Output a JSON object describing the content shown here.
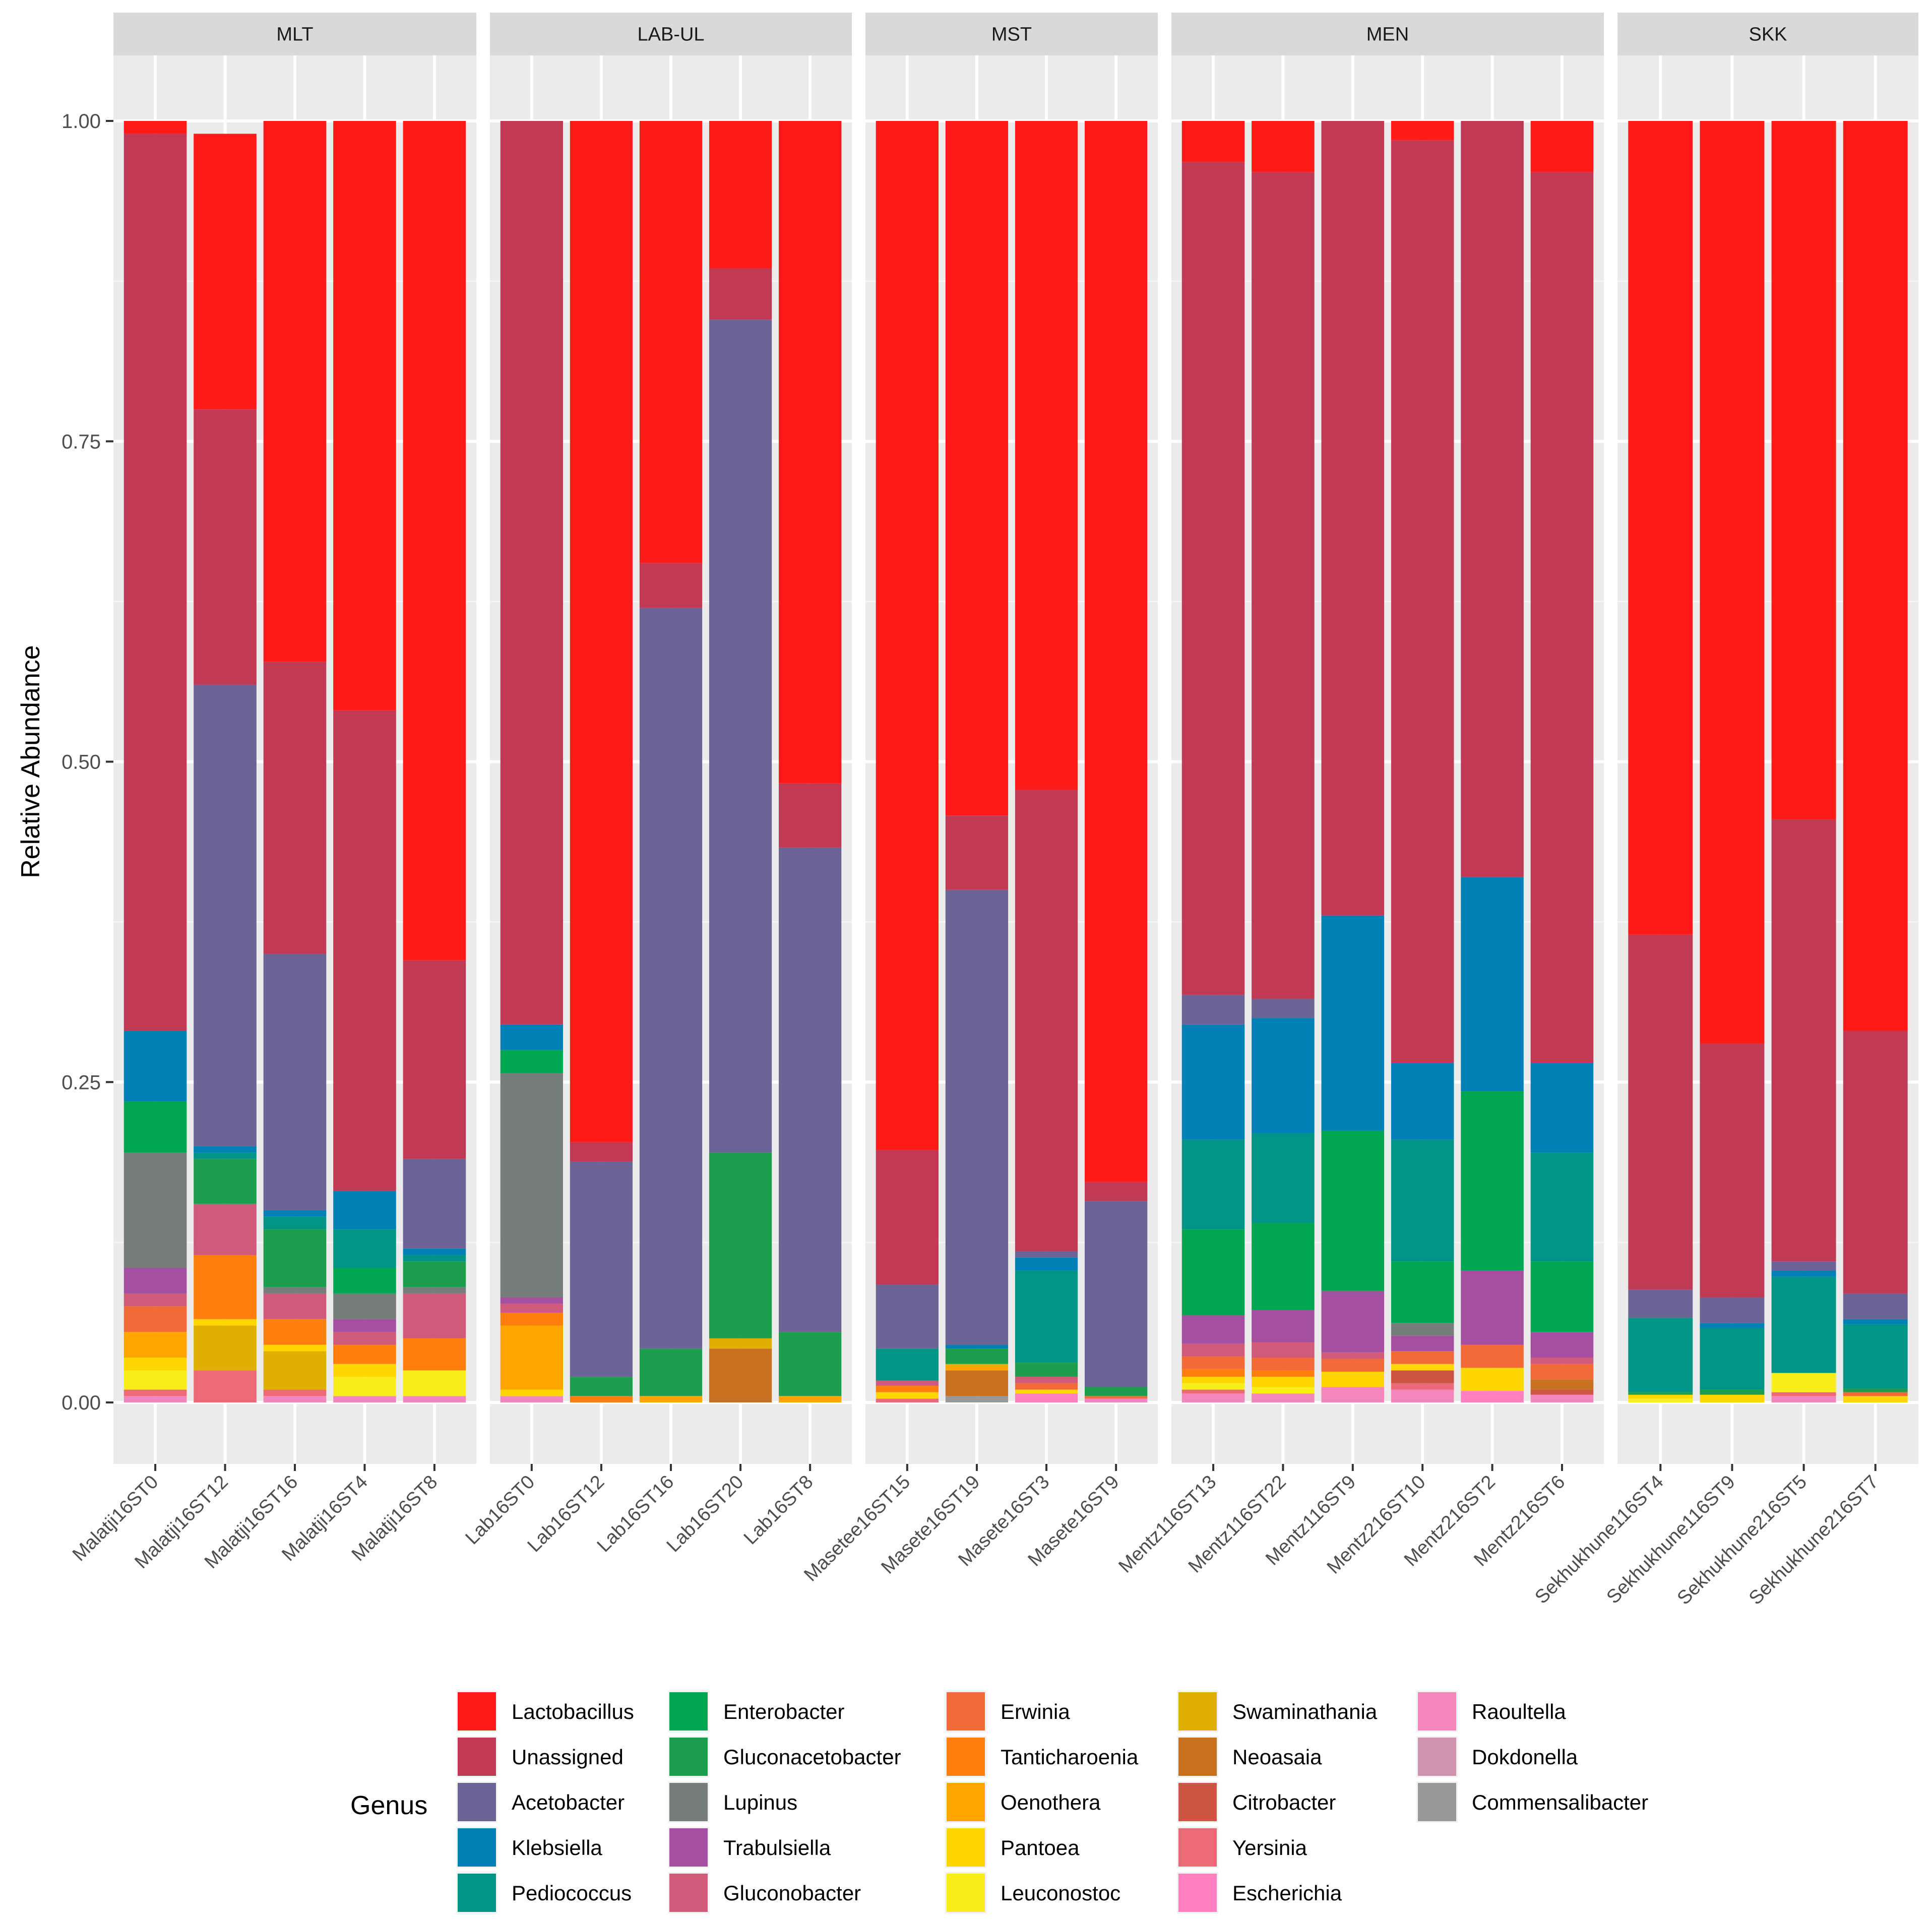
{
  "chart_data": {
    "type": "bar",
    "stacked": true,
    "ylabel": "Relative Abundance",
    "xlabel": "",
    "ylim": [
      0,
      1.05
    ],
    "yticks": [
      0.0,
      0.25,
      0.5,
      0.75,
      1.0
    ],
    "ytick_labels": [
      "0.00",
      "0.25",
      "0.50",
      "0.75",
      "1.00"
    ],
    "legend": {
      "title": "Genus",
      "position": "bottom"
    },
    "genera": [
      {
        "name": "Lactobacillus",
        "color": "#FF1A1A"
      },
      {
        "name": "Unassigned",
        "color": "#C03A55"
      },
      {
        "name": "Acetobacter",
        "color": "#6B6494"
      },
      {
        "name": "Klebsiella",
        "color": "#0080B5"
      },
      {
        "name": "Pediococcus",
        "color": "#009486"
      },
      {
        "name": "Enterobacter",
        "color": "#00A651"
      },
      {
        "name": "Gluconacetobacter",
        "color": "#1C9E4E"
      },
      {
        "name": "Lupinus",
        "color": "#767D7A"
      },
      {
        "name": "Trabulsiella",
        "color": "#A54FA0"
      },
      {
        "name": "Gluconobacter",
        "color": "#CF5A79"
      },
      {
        "name": "Erwinia",
        "color": "#F26A38"
      },
      {
        "name": "Tanticharoenia",
        "color": "#FF7F0E"
      },
      {
        "name": "Oenothera",
        "color": "#FFA500"
      },
      {
        "name": "Pantoea",
        "color": "#FFD700"
      },
      {
        "name": "Leuconostoc",
        "color": "#F7EF1C"
      },
      {
        "name": "Swaminathania",
        "color": "#E0B000"
      },
      {
        "name": "Neoasaia",
        "color": "#C87120"
      },
      {
        "name": "Citrobacter",
        "color": "#CC5543"
      },
      {
        "name": "Yersinia",
        "color": "#EC6A78"
      },
      {
        "name": "Escherichia",
        "color": "#FF7FBF"
      },
      {
        "name": "Raoultella",
        "color": "#F386BB"
      },
      {
        "name": "Dokdonella",
        "color": "#D095AE"
      },
      {
        "name": "Commensalibacter",
        "color": "#999999"
      }
    ],
    "facets": [
      {
        "name": "MLT",
        "samples": [
          {
            "name": "Malatji16ST0",
            "values": {
              "Lactobacillus": 0.01,
              "Unassigned": 0.7,
              "Klebsiella": 0.055,
              "Enterobacter": 0.04,
              "Lupinus": 0.09,
              "Trabulsiella": 0.02,
              "Gluconobacter": 0.01,
              "Erwinia": 0.02,
              "Oenothera": 0.02,
              "Pantoea": 0.01,
              "Leuconostoc": 0.015,
              "Yersinia": 0.005,
              "Raoultella": 0.005
            }
          },
          {
            "name": "Malatji16ST12",
            "values": {
              "Lactobacillus": 0.215,
              "Unassigned": 0.215,
              "Acetobacter": 0.36,
              "Klebsiella": 0.005,
              "Pediococcus": 0.005,
              "Gluconacetobacter": 0.035,
              "Gluconobacter": 0.04,
              "Yersinia": 0.025,
              "Tanticharoenia": 0.05,
              "Pantoea": 0.005,
              "Swaminathania": 0.035
            }
          },
          {
            "name": "Malatji16ST16",
            "values": {
              "Lactobacillus": 0.422,
              "Unassigned": 0.228,
              "Acetobacter": 0.2,
              "Klebsiella": 0.005,
              "Pediococcus": 0.01,
              "Gluconacetobacter": 0.045,
              "Lupinus": 0.005,
              "Gluconobacter": 0.02,
              "Yersinia": 0.005,
              "Tanticharoenia": 0.02,
              "Pantoea": 0.005,
              "Swaminathania": 0.03,
              "Raoultella": 0.005
            }
          },
          {
            "name": "Malatji16ST4",
            "values": {
              "Lactobacillus": 0.46,
              "Unassigned": 0.375,
              "Klebsiella": 0.03,
              "Pediococcus": 0.03,
              "Enterobacter": 0.02,
              "Lupinus": 0.02,
              "Trabulsiella": 0.01,
              "Gluconobacter": 0.01,
              "Tanticharoenia": 0.015,
              "Pantoea": 0.01,
              "Leuconostoc": 0.015,
              "Raoultella": 0.005
            }
          },
          {
            "name": "Malatji16ST8",
            "values": {
              "Lactobacillus": 0.655,
              "Unassigned": 0.155,
              "Acetobacter": 0.07,
              "Klebsiella": 0.005,
              "Pediococcus": 0.005,
              "Gluconacetobacter": 0.02,
              "Lupinus": 0.005,
              "Gluconobacter": 0.035,
              "Tanticharoenia": 0.025,
              "Leuconostoc": 0.02,
              "Raoultella": 0.005
            }
          }
        ]
      },
      {
        "name": "LAB-UL",
        "samples": [
          {
            "name": "Lab16ST0",
            "values": {
              "Unassigned": 0.705,
              "Klebsiella": 0.02,
              "Enterobacter": 0.018,
              "Lupinus": 0.175,
              "Trabulsiella": 0.005,
              "Gluconobacter": 0.007,
              "Tanticharoenia": 0.01,
              "Oenothera": 0.05,
              "Pantoea": 0.005,
              "Raoultella": 0.005
            }
          },
          {
            "name": "Lab16ST12",
            "values": {
              "Lactobacillus": 0.797,
              "Unassigned": 0.015,
              "Acetobacter": 0.168,
              "Gluconacetobacter": 0.015,
              "Tanticharoenia": 0.005
            }
          },
          {
            "name": "Lab16ST16",
            "values": {
              "Lactobacillus": 0.345,
              "Unassigned": 0.035,
              "Acetobacter": 0.578,
              "Gluconacetobacter": 0.037,
              "Oenothera": 0.005
            }
          },
          {
            "name": "Lab16ST20",
            "values": {
              "Lactobacillus": 0.115,
              "Unassigned": 0.04,
              "Acetobacter": 0.65,
              "Gluconacetobacter": 0.145,
              "Swaminathania": 0.008,
              "Neoasaia": 0.042
            }
          },
          {
            "name": "Lab16ST8",
            "values": {
              "Lactobacillus": 0.517,
              "Unassigned": 0.05,
              "Acetobacter": 0.378,
              "Gluconacetobacter": 0.05,
              "Oenothera": 0.005
            }
          }
        ]
      },
      {
        "name": "MST",
        "samples": [
          {
            "name": "Masetee16ST15",
            "values": {
              "Lactobacillus": 0.803,
              "Unassigned": 0.105,
              "Acetobacter": 0.05,
              "Pediococcus": 0.025,
              "Gluconobacter": 0.004,
              "Yersinia": 0.003,
              "Tanticharoenia": 0.005,
              "Pantoea": 0.005
            }
          },
          {
            "name": "Masete16ST19",
            "values": {
              "Lactobacillus": 0.542,
              "Unassigned": 0.058,
              "Acetobacter": 0.355,
              "Klebsiella": 0.003,
              "Gluconacetobacter": 0.012,
              "Oenothera": 0.005,
              "Neoasaia": 0.02,
              "Commensalibacter": 0.005
            }
          },
          {
            "name": "Masete16ST3",
            "values": {
              "Lactobacillus": 0.522,
              "Unassigned": 0.36,
              "Acetobacter": 0.005,
              "Klebsiella": 0.01,
              "Pediococcus": 0.072,
              "Gluconacetobacter": 0.011,
              "Gluconobacter": 0.005,
              "Erwinia": 0.005,
              "Pantoea": 0.003,
              "Escherichia": 0.007
            }
          },
          {
            "name": "Masete16ST9",
            "values": {
              "Lactobacillus": 0.828,
              "Unassigned": 0.015,
              "Acetobacter": 0.145,
              "Gluconacetobacter": 0.007,
              "Erwinia": 0.002,
              "Raoultella": 0.003
            }
          }
        ]
      },
      {
        "name": "MEN",
        "samples": [
          {
            "name": "Mentz116ST13",
            "values": {
              "Lactobacillus": 0.032,
              "Unassigned": 0.65,
              "Acetobacter": 0.023,
              "Klebsiella": 0.09,
              "Pediococcus": 0.07,
              "Enterobacter": 0.067,
              "Trabulsiella": 0.022,
              "Gluconobacter": 0.01,
              "Erwinia": 0.01,
              "Tanticharoenia": 0.006,
              "Pantoea": 0.005,
              "Leuconostoc": 0.005,
              "Yersinia": 0.003,
              "Raoultella": 0.007
            }
          },
          {
            "name": "Mentz116ST22",
            "values": {
              "Lactobacillus": 0.04,
              "Unassigned": 0.645,
              "Acetobacter": 0.015,
              "Klebsiella": 0.09,
              "Pediococcus": 0.07,
              "Enterobacter": 0.068,
              "Trabulsiella": 0.025,
              "Gluconobacter": 0.012,
              "Erwinia": 0.01,
              "Tanticharoenia": 0.005,
              "Pantoea": 0.008,
              "Leuconostoc": 0.005,
              "Raoultella": 0.007
            }
          },
          {
            "name": "Mentz116ST9",
            "values": {
              "Unassigned": 0.62,
              "Klebsiella": 0.168,
              "Enterobacter": 0.125,
              "Trabulsiella": 0.048,
              "Gluconobacter": 0.005,
              "Erwinia": 0.01,
              "Pantoea": 0.012,
              "Raoultella": 0.012
            }
          },
          {
            "name": "Mentz216ST10",
            "values": {
              "Lactobacillus": 0.015,
              "Unassigned": 0.72,
              "Klebsiella": 0.06,
              "Pediococcus": 0.095,
              "Enterobacter": 0.048,
              "Lupinus": 0.01,
              "Trabulsiella": 0.012,
              "Erwinia": 0.01,
              "Pantoea": 0.005,
              "Citrobacter": 0.01,
              "Yersinia": 0.005,
              "Raoultella": 0.01
            }
          },
          {
            "name": "Mentz216ST2",
            "values": {
              "Unassigned": 0.59,
              "Klebsiella": 0.167,
              "Enterobacter": 0.14,
              "Trabulsiella": 0.058,
              "Erwinia": 0.018,
              "Pantoea": 0.018,
              "Escherichia": 0.009
            }
          },
          {
            "name": "Mentz216ST6",
            "values": {
              "Lactobacillus": 0.04,
              "Unassigned": 0.695,
              "Klebsiella": 0.07,
              "Pediococcus": 0.085,
              "Enterobacter": 0.055,
              "Trabulsiella": 0.02,
              "Gluconobacter": 0.005,
              "Erwinia": 0.012,
              "Neoasaia": 0.008,
              "Citrobacter": 0.004,
              "Raoultella": 0.006
            }
          }
        ]
      },
      {
        "name": "SKK",
        "samples": [
          {
            "name": "Sekhukhune116ST4",
            "values": {
              "Lactobacillus": 0.635,
              "Unassigned": 0.277,
              "Acetobacter": 0.022,
              "Pediococcus": 0.058,
              "Gluconacetobacter": 0.002,
              "Pantoea": 0.003,
              "Leuconostoc": 0.003
            }
          },
          {
            "name": "Sekhukhune116ST9",
            "values": {
              "Lactobacillus": 0.72,
              "Unassigned": 0.198,
              "Acetobacter": 0.02,
              "Klebsiella": 0.004,
              "Pediococcus": 0.048,
              "Gluconacetobacter": 0.004,
              "Pantoea": 0.006
            }
          },
          {
            "name": "Sekhukhune216ST5",
            "values": {
              "Lactobacillus": 0.545,
              "Unassigned": 0.345,
              "Acetobacter": 0.007,
              "Klebsiella": 0.005,
              "Pediococcus": 0.075,
              "Yersinia": 0.003,
              "Leuconostoc": 0.015,
              "Raoultella": 0.005
            }
          },
          {
            "name": "Sekhukhune216ST7",
            "values": {
              "Lactobacillus": 0.71,
              "Unassigned": 0.205,
              "Acetobacter": 0.02,
              "Klebsiella": 0.004,
              "Pediococcus": 0.05,
              "Gluconacetobacter": 0.003,
              "Erwinia": 0.003,
              "Pantoea": 0.005
            }
          }
        ]
      }
    ]
  }
}
